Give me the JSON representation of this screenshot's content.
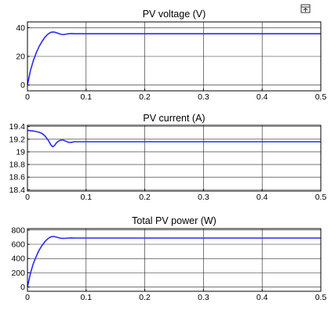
{
  "window": {
    "dock_icon": "undock-figure-icon"
  },
  "colors": {
    "trace": "#2a2aff",
    "grid": "#222222",
    "axis": "#000000",
    "background": "#ffffff"
  },
  "chart_data": [
    {
      "type": "line",
      "title": "PV voltage (V)",
      "xlabel": "",
      "ylabel": "",
      "xlim": [
        0,
        0.5
      ],
      "ylim": [
        -4,
        44
      ],
      "xticks": [
        0,
        0.1,
        0.2,
        0.3,
        0.4,
        0.5
      ],
      "xtick_labels": [
        "0",
        "0.1",
        "0.2",
        "0.3",
        "0.4",
        "0.5"
      ],
      "yticks": [
        0,
        20,
        40
      ],
      "ytick_labels": [
        "0",
        "20",
        "40"
      ],
      "grid": true,
      "series": [
        {
          "x": [
            0,
            0.005,
            0.01,
            0.015,
            0.02,
            0.025,
            0.03,
            0.035,
            0.04,
            0.045,
            0.05,
            0.055,
            0.06,
            0.065,
            0.07,
            0.075,
            0.08,
            0.09,
            0.1,
            0.2,
            0.3,
            0.4,
            0.5
          ],
          "y": [
            0,
            10,
            17,
            22.5,
            27,
            30.5,
            33.5,
            35.5,
            36.8,
            37,
            36.4,
            35.6,
            35.2,
            35.4,
            35.8,
            35.9,
            35.8,
            35.8,
            35.8,
            35.8,
            35.8,
            35.8,
            35.8
          ]
        }
      ]
    },
    {
      "type": "line",
      "title": "PV current (A)",
      "xlabel": "",
      "ylabel": "",
      "xlim": [
        0,
        0.5
      ],
      "ylim": [
        18.38,
        19.42
      ],
      "xticks": [
        0,
        0.1,
        0.2,
        0.3,
        0.4,
        0.5
      ],
      "xtick_labels": [
        "0",
        "0.1",
        "0.2",
        "0.3",
        "0.4",
        "0.5"
      ],
      "yticks": [
        18.4,
        18.6,
        18.8,
        19,
        19.2,
        19.4
      ],
      "ytick_labels": [
        "18.4",
        "18.6",
        "18.8",
        "19",
        "19.2",
        "19.4"
      ],
      "grid": true,
      "series": [
        {
          "x": [
            0,
            0.01,
            0.02,
            0.025,
            0.03,
            0.035,
            0.04,
            0.043,
            0.046,
            0.05,
            0.055,
            0.06,
            0.065,
            0.07,
            0.075,
            0.08,
            0.09,
            0.1,
            0.2,
            0.3,
            0.4,
            0.5
          ],
          "y": [
            19.34,
            19.33,
            19.31,
            19.29,
            19.25,
            19.19,
            19.11,
            19.08,
            19.1,
            19.15,
            19.18,
            19.19,
            19.17,
            19.15,
            19.15,
            19.16,
            19.16,
            19.16,
            19.16,
            19.16,
            19.16,
            19.16
          ]
        }
      ]
    },
    {
      "type": "line",
      "title": "Total PV power (W)",
      "xlabel": "",
      "ylabel": "",
      "xlim": [
        0,
        0.5
      ],
      "ylim": [
        -60,
        820
      ],
      "xticks": [
        0,
        0.1,
        0.2,
        0.3,
        0.4,
        0.5
      ],
      "xtick_labels": [
        "0",
        "0.1",
        "0.2",
        "0.3",
        "0.4",
        "0.5"
      ],
      "yticks": [
        0,
        200,
        400,
        600,
        800
      ],
      "ytick_labels": [
        "0",
        "200",
        "400",
        "600",
        "800"
      ],
      "grid": true,
      "series": [
        {
          "x": [
            0,
            0.005,
            0.01,
            0.015,
            0.02,
            0.025,
            0.03,
            0.035,
            0.04,
            0.045,
            0.05,
            0.055,
            0.06,
            0.065,
            0.07,
            0.075,
            0.08,
            0.09,
            0.1,
            0.2,
            0.3,
            0.4,
            0.5
          ],
          "y": [
            0,
            190,
            330,
            430,
            520,
            585,
            640,
            680,
            705,
            710,
            700,
            688,
            683,
            685,
            688,
            690,
            688,
            688,
            688,
            688,
            688,
            688,
            688
          ]
        }
      ]
    }
  ]
}
